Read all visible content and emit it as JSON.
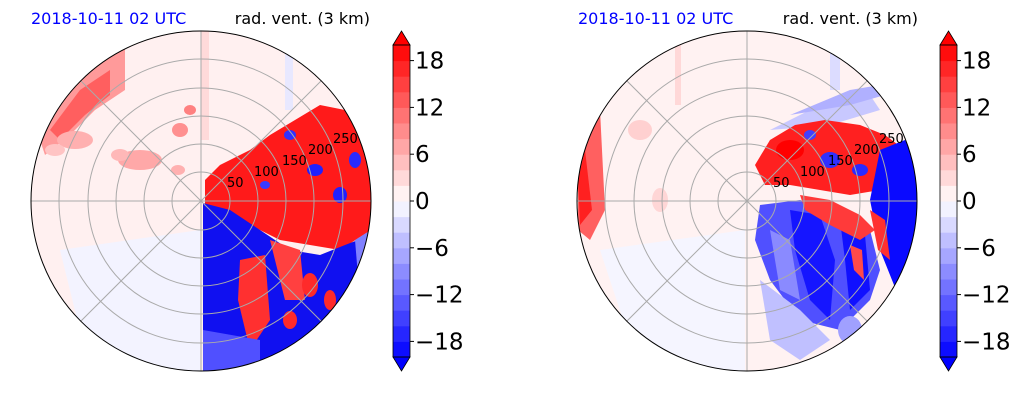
{
  "chart_data": [
    {
      "type": "heatmap",
      "subtype": "polar radar PPI",
      "title_left": "2018-10-11 02 UTC",
      "title_right": "rad. vent. (3 km)",
      "title_left_color": "#0000ff",
      "range_rings": [
        50,
        100,
        150,
        200,
        250
      ],
      "range_labels": [
        "50",
        "100",
        "150",
        "200",
        "250"
      ],
      "colorbar": {
        "ticks": [
          "18",
          "12",
          "6",
          "0",
          "−6",
          "−12",
          "−18"
        ],
        "tick_values": [
          18,
          12,
          6,
          0,
          -6,
          -12,
          -18
        ],
        "vmin": -20,
        "vmax": 20,
        "step": 2,
        "extend": "both",
        "colormap": "bwr"
      },
      "grid": true
    },
    {
      "type": "heatmap",
      "subtype": "polar radar PPI",
      "title_left": "2018-10-11 02 UTC",
      "title_right": "rad. vent. (3 km)",
      "title_left_color": "#0000ff",
      "range_rings": [
        50,
        100,
        150,
        200,
        250
      ],
      "range_labels": [
        "50",
        "100",
        "150",
        "200",
        "250"
      ],
      "colorbar": {
        "ticks": [
          "18",
          "12",
          "6",
          "0",
          "−6",
          "−12",
          "−18"
        ],
        "tick_values": [
          18,
          12,
          6,
          0,
          -6,
          -12,
          -18
        ],
        "vmin": -20,
        "vmax": 20,
        "step": 2,
        "extend": "both",
        "colormap": "bwr"
      },
      "grid": true
    }
  ]
}
